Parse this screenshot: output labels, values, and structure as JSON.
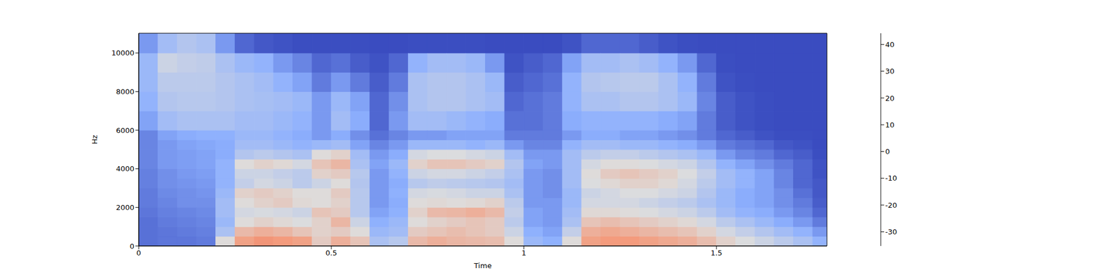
{
  "chart_data": {
    "type": "heatmap",
    "x_label": "Time",
    "y_label": "Hz",
    "xlim": [
      0,
      1.787
    ],
    "xticks": [
      0,
      0.5,
      1,
      1.5
    ],
    "ylim": [
      0,
      11025
    ],
    "yticks": [
      0,
      2000,
      4000,
      6000,
      8000,
      10000
    ],
    "x_bins": [
      0,
      0.05,
      0.1,
      0.15,
      0.2,
      0.25,
      0.3,
      0.35,
      0.4,
      0.45,
      0.5,
      0.55,
      0.6,
      0.65,
      0.7,
      0.75,
      0.8,
      0.85,
      0.9,
      0.95,
      1.0,
      1.05,
      1.1,
      1.15,
      1.2,
      1.25,
      1.3,
      1.35,
      1.4,
      1.45,
      1.5,
      1.55,
      1.6,
      1.65,
      1.7,
      1.75,
      1.787
    ],
    "y_bins": [
      0,
      500,
      1000,
      1500,
      2000,
      2500,
      3000,
      3500,
      4000,
      4500,
      5000,
      5500,
      6000,
      7000,
      8000,
      9000,
      10000,
      11025
    ],
    "cells": [
      [
        -28,
        -28,
        -28,
        -27,
        -26,
        -26,
        -25,
        -25,
        -24,
        -24,
        -24,
        -24,
        -18,
        -14,
        -12,
        -12,
        -20
      ],
      [
        -27,
        -27,
        -26,
        -25,
        -24,
        -23,
        -22,
        -22,
        -20,
        -20,
        -20,
        -18,
        -10,
        -6,
        -4,
        0,
        -10
      ],
      [
        -27,
        -26,
        -25,
        -24,
        -22,
        -22,
        -21,
        -20,
        -19,
        -19,
        -18,
        -16,
        -8,
        -5,
        -4,
        -2,
        -6
      ],
      [
        -26,
        -25,
        -24,
        -23,
        -22,
        -21,
        -20,
        -19,
        -18,
        -18,
        -17,
        -15,
        -8,
        -5,
        -4,
        -3,
        -8
      ],
      [
        5,
        -8,
        -12,
        -10,
        -10,
        -12,
        -14,
        -14,
        -14,
        -16,
        -16,
        -15,
        -8,
        -6,
        -6,
        -8,
        -20
      ],
      [
        22,
        15,
        5,
        2,
        5,
        8,
        -2,
        0,
        5,
        -6,
        -10,
        -12,
        -10,
        -8,
        -8,
        -12,
        -30
      ],
      [
        25,
        18,
        8,
        3,
        8,
        10,
        2,
        0,
        8,
        -4,
        -10,
        -12,
        -10,
        -9,
        -10,
        -14,
        -33
      ],
      [
        24,
        16,
        6,
        2,
        10,
        8,
        0,
        -2,
        6,
        -6,
        -12,
        -14,
        -12,
        -10,
        -14,
        -20,
        -34
      ],
      [
        22,
        12,
        4,
        0,
        6,
        5,
        -4,
        -4,
        2,
        -8,
        -14,
        -16,
        -14,
        -12,
        -18,
        -24,
        -35
      ],
      [
        10,
        8,
        8,
        12,
        5,
        5,
        0,
        8,
        12,
        5,
        -12,
        -20,
        -20,
        -20,
        -26,
        -30,
        -35
      ],
      [
        18,
        10,
        16,
        10,
        8,
        10,
        5,
        10,
        16,
        8,
        -10,
        -16,
        -10,
        -12,
        -20,
        -28,
        -35
      ],
      [
        12,
        5,
        0,
        -5,
        -5,
        -5,
        -6,
        -5,
        -8,
        -10,
        -18,
        -22,
        -16,
        -18,
        -26,
        -32,
        -35
      ],
      [
        -8,
        -12,
        -15,
        -18,
        -20,
        -20,
        -20,
        -20,
        -18,
        -20,
        -24,
        -28,
        -30,
        -30,
        -32,
        -34,
        -36
      ],
      [
        -5,
        -10,
        -12,
        -15,
        -16,
        -15,
        -16,
        -14,
        -12,
        -16,
        -20,
        -24,
        -20,
        -22,
        -26,
        -30,
        -36
      ],
      [
        15,
        10,
        5,
        8,
        5,
        2,
        -5,
        0,
        8,
        2,
        -12,
        -20,
        -10,
        -8,
        -8,
        -14,
        -35
      ],
      [
        18,
        12,
        8,
        15,
        6,
        3,
        -3,
        2,
        12,
        4,
        -12,
        -20,
        -10,
        -6,
        -6,
        -10,
        -35
      ],
      [
        16,
        14,
        10,
        16,
        5,
        2,
        -4,
        2,
        12,
        4,
        -12,
        -18,
        -12,
        -6,
        -6,
        -10,
        -35
      ],
      [
        15,
        12,
        12,
        18,
        6,
        0,
        -5,
        0,
        10,
        2,
        -14,
        -18,
        -14,
        -8,
        -8,
        -12,
        -35
      ],
      [
        14,
        10,
        10,
        15,
        8,
        0,
        -6,
        -2,
        8,
        0,
        -12,
        -18,
        -16,
        -10,
        -12,
        -20,
        -36
      ],
      [
        5,
        0,
        -4,
        -2,
        -4,
        -8,
        -10,
        -8,
        -6,
        -10,
        -20,
        -26,
        -28,
        -30,
        -32,
        -34,
        -36
      ],
      [
        -12,
        -15,
        -18,
        -18,
        -20,
        -20,
        -20,
        -20,
        -18,
        -20,
        -24,
        -26,
        -28,
        -28,
        -30,
        -32,
        -36
      ],
      [
        -15,
        -18,
        -20,
        -20,
        -20,
        -22,
        -22,
        -22,
        -20,
        -20,
        -24,
        -26,
        -26,
        -26,
        -28,
        -30,
        -36
      ],
      [
        5,
        -2,
        -8,
        -10,
        -12,
        -12,
        -10,
        -10,
        -10,
        -10,
        -14,
        -20,
        -16,
        -14,
        -14,
        -18,
        -34
      ],
      [
        22,
        18,
        12,
        6,
        2,
        0,
        4,
        5,
        2,
        -4,
        -10,
        -16,
        -14,
        -8,
        -6,
        -10,
        -30
      ],
      [
        24,
        20,
        14,
        6,
        2,
        2,
        6,
        10,
        5,
        -2,
        -10,
        -16,
        -14,
        -8,
        -5,
        -10,
        -30
      ],
      [
        24,
        18,
        12,
        5,
        2,
        4,
        8,
        12,
        5,
        -2,
        -12,
        -18,
        -14,
        -6,
        -4,
        -8,
        -30
      ],
      [
        22,
        16,
        10,
        4,
        0,
        4,
        8,
        10,
        4,
        -4,
        -12,
        -18,
        -14,
        -6,
        -4,
        -10,
        -32
      ],
      [
        20,
        14,
        8,
        2,
        -2,
        2,
        6,
        8,
        2,
        -6,
        -14,
        -20,
        -16,
        -8,
        -8,
        -14,
        -34
      ],
      [
        18,
        12,
        6,
        0,
        -4,
        0,
        2,
        4,
        0,
        -8,
        -16,
        -22,
        -18,
        -12,
        -14,
        -20,
        -35
      ],
      [
        14,
        8,
        2,
        -4,
        -8,
        -6,
        -4,
        -2,
        -6,
        -12,
        -20,
        -26,
        -26,
        -24,
        -26,
        -30,
        -36
      ],
      [
        8,
        2,
        -4,
        -10,
        -12,
        -12,
        -10,
        -10,
        -14,
        -20,
        -26,
        -30,
        -32,
        -32,
        -34,
        -35,
        -36
      ],
      [
        4,
        -2,
        -8,
        -14,
        -16,
        -16,
        -14,
        -14,
        -18,
        -24,
        -28,
        -32,
        -34,
        -34,
        -35,
        -36,
        -36
      ],
      [
        0,
        -6,
        -12,
        -16,
        -18,
        -18,
        -18,
        -18,
        -22,
        -26,
        -30,
        -34,
        -35,
        -35,
        -36,
        -36,
        -36
      ],
      [
        -4,
        -10,
        -16,
        -20,
        -22,
        -22,
        -24,
        -24,
        -26,
        -30,
        -33,
        -35,
        -36,
        -36,
        -36,
        -36,
        -36
      ],
      [
        -8,
        -14,
        -20,
        -24,
        -26,
        -28,
        -30,
        -30,
        -30,
        -32,
        -34,
        -35,
        -36,
        -36,
        -36,
        -36,
        -36
      ],
      [
        -14,
        -20,
        -26,
        -30,
        -32,
        -33,
        -33,
        -34,
        -34,
        -35,
        -36,
        -36,
        -36,
        -36,
        -36,
        -36,
        -36
      ]
    ],
    "colorbar_range": [
      -35.3,
      44.2
    ],
    "colorbar_ticks": [
      -30,
      -20,
      -10,
      0,
      10,
      20,
      30,
      40
    ]
  }
}
